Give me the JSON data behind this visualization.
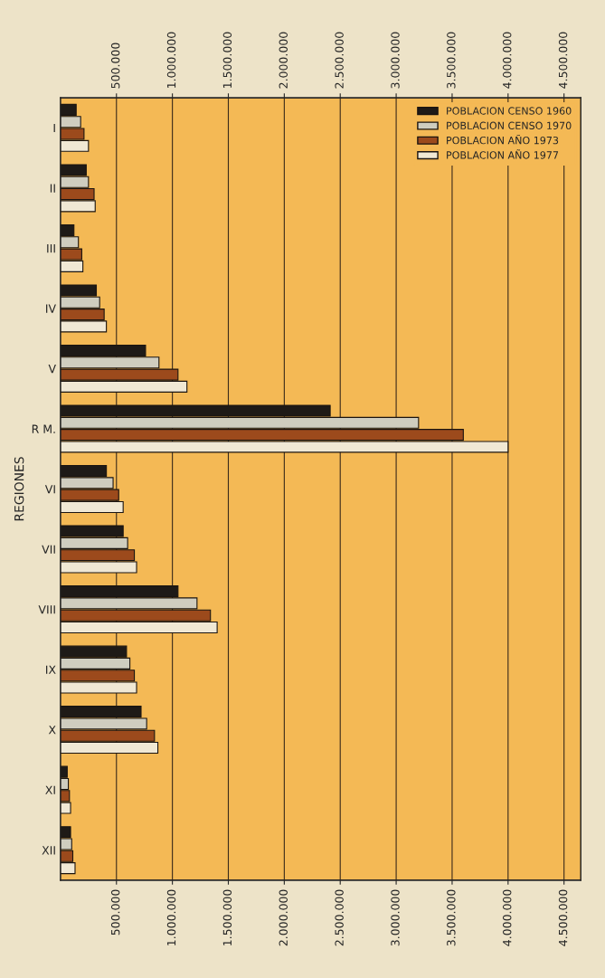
{
  "chart_data": {
    "type": "bar",
    "orientation": "horizontal",
    "ylabel": "REGIONES",
    "categories": [
      "I",
      "II",
      "III",
      "IV",
      "V",
      "R M.",
      "VI",
      "VII",
      "VIII",
      "IX",
      "X",
      "XI",
      "XII"
    ],
    "series": [
      {
        "name": "POBLACION CENSO 1960",
        "color": "#1e1a17",
        "values": [
          140000,
          230000,
          120000,
          320000,
          760000,
          2410000,
          410000,
          560000,
          1050000,
          590000,
          720000,
          60000,
          90000
        ]
      },
      {
        "name": "POBLACION CENSO 1970",
        "color": "#cfcdbf",
        "values": [
          180000,
          250000,
          160000,
          350000,
          880000,
          3200000,
          470000,
          600000,
          1220000,
          620000,
          770000,
          70000,
          100000
        ]
      },
      {
        "name": "POBLACION AÑO 1973",
        "color": "#9c4a1c",
        "values": [
          210000,
          300000,
          190000,
          390000,
          1050000,
          3600000,
          520000,
          660000,
          1340000,
          660000,
          840000,
          80000,
          110000
        ]
      },
      {
        "name": "POBLACION AÑO 1977",
        "color": "#f0e8d4",
        "values": [
          250000,
          310000,
          200000,
          410000,
          1130000,
          4000000,
          560000,
          680000,
          1400000,
          680000,
          870000,
          90000,
          130000
        ]
      }
    ],
    "xlim": [
      0,
      4650000
    ],
    "xticks": [
      {
        "value": 500000,
        "label": "500.000"
      },
      {
        "value": 1000000,
        "label": "1.000.000"
      },
      {
        "value": 1500000,
        "label": "1.500.000"
      },
      {
        "value": 2000000,
        "label": "2.000.000"
      },
      {
        "value": 2500000,
        "label": "2.500.000"
      },
      {
        "value": 3000000,
        "label": "3.000.000"
      },
      {
        "value": 3500000,
        "label": "3.500.000"
      },
      {
        "value": 4000000,
        "label": "4.000.000"
      },
      {
        "value": 4500000,
        "label": "4.500.000"
      }
    ],
    "x2lim": [
      0,
      4650000
    ],
    "x2ticks": [
      {
        "value": 500000,
        "label": "500.000"
      },
      {
        "value": 1000000,
        "label": "1.000.000"
      },
      {
        "value": 1500000,
        "label": "1.500.000"
      },
      {
        "value": 2000000,
        "label": "2.000.000"
      },
      {
        "value": 2500000,
        "label": "2.500.000"
      },
      {
        "value": 3000000,
        "label": "3.000.000"
      },
      {
        "value": 3500000,
        "label": "3.500.000"
      },
      {
        "value": 4000000,
        "label": "4.000.000"
      },
      {
        "value": 4500000,
        "label": "4.500.000"
      }
    ],
    "grid": "x",
    "legend": "top right"
  }
}
